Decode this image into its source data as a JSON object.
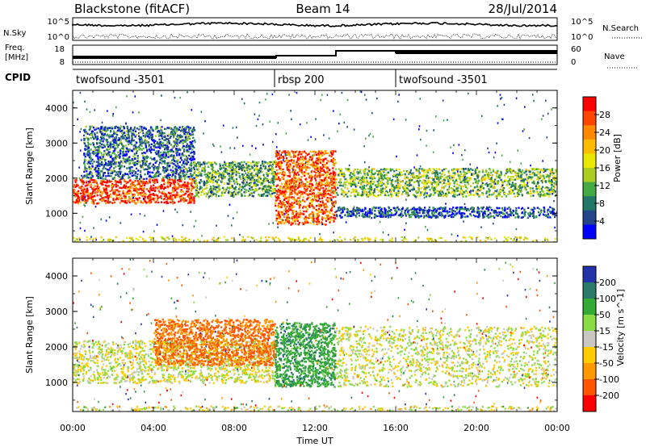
{
  "header": {
    "station": "Blackstone (fitACF)",
    "beam": "Beam 14",
    "date": "28/Jul/2014"
  },
  "summary": {
    "nsky_label": "N.Sky",
    "nsearch_label": "N.Search",
    "nsky_ticks": [
      "10^5",
      "10^0"
    ],
    "nsearch_ticks": [
      "10^5",
      "10^0"
    ],
    "freq_label_line1": "Freq.",
    "freq_label_line2": "[MHz]",
    "freq_ticks": [
      "18",
      "8"
    ],
    "nave_label": "Nave",
    "nave_ticks": [
      "60",
      "0"
    ],
    "cpid_label": "CPID",
    "cpid_segments": [
      {
        "start_hour": 0,
        "end_hour": 10,
        "name": "twofsound -3501"
      },
      {
        "start_hour": 10,
        "end_hour": 16,
        "name": "rbsp 200"
      },
      {
        "start_hour": 16,
        "end_hour": 24,
        "name": "twofsound -3501"
      }
    ]
  },
  "chart_data": [
    {
      "type": "heatmap",
      "title": "",
      "quantity": "Power",
      "colorbar_label": "Power [dB]",
      "colorbar_ticks": [
        "28",
        "24",
        "20",
        "16",
        "12",
        "8",
        "4"
      ],
      "colorbar_colors": [
        "#ff0000",
        "#ff4400",
        "#ff8800",
        "#ffbb00",
        "#e8e800",
        "#a8cc20",
        "#44aa44",
        "#227766",
        "#224488",
        "#0000ff"
      ],
      "xlabel": "",
      "ylabel": "Slant Range [km]",
      "xlim_hours": [
        0,
        24
      ],
      "ylim_km": [
        180,
        4500
      ],
      "yticks": [
        "4000",
        "3000",
        "2000",
        "1000"
      ],
      "echo_bands": [
        {
          "from_hour": 0,
          "to_hour": 6,
          "range_from_km": 1300,
          "range_to_km": 2000,
          "power_db": 28
        },
        {
          "from_hour": 0.5,
          "to_hour": 6,
          "range_from_km": 2000,
          "range_to_km": 3500,
          "power_db": 8
        },
        {
          "from_hour": 6,
          "to_hour": 10,
          "range_from_km": 1500,
          "range_to_km": 2500,
          "power_db": 12
        },
        {
          "from_hour": 10,
          "to_hour": 13,
          "range_from_km": 700,
          "range_to_km": 2800,
          "power_db": 26
        },
        {
          "from_hour": 13,
          "to_hour": 24,
          "range_from_km": 1500,
          "range_to_km": 2300,
          "power_db": 14
        },
        {
          "from_hour": 13,
          "to_hour": 24,
          "range_from_km": 900,
          "range_to_km": 1200,
          "power_db": 6
        }
      ]
    },
    {
      "type": "heatmap",
      "title": "",
      "quantity": "Velocity",
      "colorbar_label": "Velocity [m s^-1]",
      "colorbar_ticks": [
        "200",
        "100",
        "50",
        "15",
        "-15",
        "-50",
        "-100",
        "-200"
      ],
      "colorbar_colors": [
        "#2233aa",
        "#2a7a6a",
        "#33aa33",
        "#88dd44",
        "#c8c8c0",
        "#ffcc00",
        "#ff9900",
        "#ff5500",
        "#ff0000"
      ],
      "xlabel": "Time UT",
      "ylabel": "Slant Range [km]",
      "xlim_hours": [
        0,
        24
      ],
      "ylim_km": [
        180,
        4500
      ],
      "xticks": [
        "00:00",
        "04:00",
        "08:00",
        "12:00",
        "16:00",
        "20:00",
        "00:00"
      ],
      "yticks": [
        "4000",
        "3000",
        "2000",
        "1000"
      ],
      "echo_bands": [
        {
          "from_hour": 0,
          "to_hour": 10,
          "range_from_km": 1000,
          "range_to_km": 2200,
          "velocity_ms": 0
        },
        {
          "from_hour": 4,
          "to_hour": 10,
          "range_from_km": 1500,
          "range_to_km": 2800,
          "velocity_ms": -80
        },
        {
          "from_hour": 10,
          "to_hour": 13,
          "range_from_km": 900,
          "range_to_km": 2700,
          "velocity_ms": 60
        },
        {
          "from_hour": 13,
          "to_hour": 24,
          "range_from_km": 900,
          "range_to_km": 2600,
          "velocity_ms": 0
        }
      ]
    }
  ]
}
